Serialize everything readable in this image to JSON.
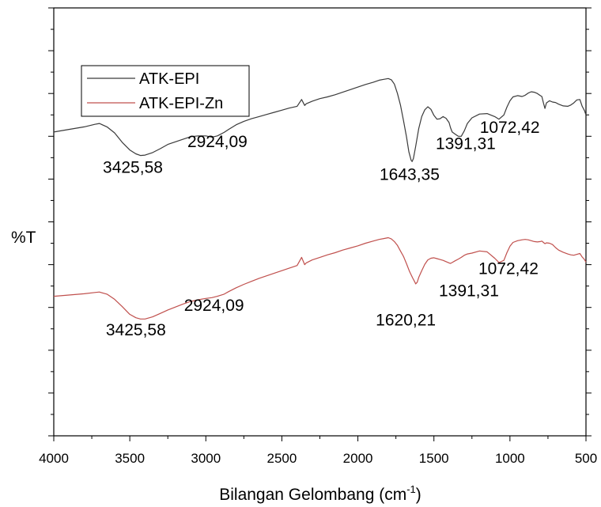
{
  "chart_data": {
    "type": "line",
    "title": "",
    "xlabel": "Bilangan Gelombang (cm",
    "xlabel_sup": "-1",
    "xlabel_close": ")",
    "ylabel": "%T",
    "x_reversed": true,
    "xlim": [
      4000,
      500
    ],
    "ylim": [
      0,
      100
    ],
    "x_ticks": [
      4000,
      3500,
      3000,
      2500,
      2000,
      1500,
      1000,
      500
    ],
    "x_tick_labels": [
      "4000",
      "3500",
      "3000",
      "2500",
      "2000",
      "1500",
      "1000",
      "500"
    ],
    "grid": false,
    "legend_position": "top-left",
    "series": [
      {
        "name": "ATK-EPI",
        "color": "#3a3a3a",
        "x": [
          4000,
          3900,
          3800,
          3730,
          3700,
          3650,
          3600,
          3550,
          3500,
          3460,
          3430,
          3400,
          3350,
          3300,
          3250,
          3200,
          3150,
          3100,
          3050,
          3000,
          2960,
          2924,
          2880,
          2850,
          2800,
          2750,
          2700,
          2650,
          2600,
          2550,
          2500,
          2450,
          2400,
          2370,
          2350,
          2340,
          2300,
          2250,
          2200,
          2150,
          2100,
          2050,
          2000,
          1950,
          1900,
          1860,
          1830,
          1800,
          1780,
          1760,
          1740,
          1720,
          1700,
          1680,
          1665,
          1650,
          1643,
          1635,
          1620,
          1600,
          1580,
          1560,
          1540,
          1520,
          1500,
          1480,
          1460,
          1440,
          1420,
          1400,
          1391,
          1380,
          1360,
          1340,
          1320,
          1300,
          1280,
          1250,
          1200,
          1150,
          1100,
          1072,
          1040,
          1020,
          1000,
          980,
          950,
          920,
          900,
          880,
          860,
          840,
          820,
          800,
          790,
          780,
          770,
          760,
          740,
          720,
          700,
          680,
          650,
          620,
          600,
          580,
          560,
          540,
          525,
          510,
          500
        ],
        "y": [
          71.0,
          71.6,
          72.2,
          72.8,
          73.0,
          72.2,
          70.8,
          68.6,
          66.8,
          65.9,
          65.5,
          65.6,
          66.2,
          67.1,
          68.1,
          68.7,
          69.3,
          69.9,
          70.1,
          70.1,
          69.8,
          70.1,
          70.9,
          71.6,
          72.7,
          73.5,
          74.1,
          74.6,
          75.1,
          75.6,
          76.1,
          76.6,
          77.0,
          78.6,
          77.2,
          77.6,
          78.2,
          78.8,
          79.2,
          79.7,
          80.3,
          80.9,
          81.5,
          82.1,
          82.6,
          83.1,
          83.3,
          83.5,
          83.2,
          82.2,
          80.0,
          77.3,
          73.6,
          69.8,
          66.4,
          64.4,
          64.1,
          64.8,
          67.6,
          71.8,
          74.6,
          76.2,
          76.9,
          76.3,
          74.9,
          74.0,
          74.1,
          74.6,
          74.2,
          73.2,
          72.0,
          71.0,
          70.5,
          70.0,
          70.0,
          71.3,
          73.0,
          74.3,
          75.2,
          75.3,
          74.6,
          74.0,
          75.0,
          76.8,
          78.3,
          79.2,
          79.5,
          79.3,
          79.6,
          80.1,
          80.4,
          80.3,
          80.0,
          79.5,
          79.3,
          77.8,
          76.5,
          77.8,
          78.3,
          78.0,
          77.9,
          77.5,
          77.1,
          77.0,
          77.3,
          77.8,
          78.5,
          78.6,
          77.0,
          76.0,
          75.0
        ]
      },
      {
        "name": "ATK-EPI-Zn",
        "color": "#c0504d",
        "x": [
          4000,
          3900,
          3800,
          3730,
          3700,
          3650,
          3600,
          3550,
          3500,
          3460,
          3430,
          3400,
          3350,
          3300,
          3250,
          3200,
          3150,
          3100,
          3050,
          3000,
          2960,
          2924,
          2880,
          2850,
          2800,
          2750,
          2700,
          2650,
          2600,
          2550,
          2500,
          2450,
          2400,
          2370,
          2350,
          2340,
          2300,
          2250,
          2200,
          2150,
          2100,
          2050,
          2000,
          1950,
          1900,
          1860,
          1830,
          1800,
          1780,
          1760,
          1740,
          1720,
          1700,
          1680,
          1660,
          1640,
          1625,
          1620,
          1610,
          1600,
          1580,
          1560,
          1540,
          1520,
          1500,
          1480,
          1460,
          1440,
          1420,
          1400,
          1391,
          1380,
          1360,
          1340,
          1320,
          1300,
          1280,
          1250,
          1200,
          1150,
          1100,
          1072,
          1040,
          1020,
          1000,
          980,
          950,
          920,
          900,
          880,
          860,
          840,
          820,
          800,
          790,
          780,
          770,
          760,
          740,
          720,
          700,
          680,
          650,
          620,
          600,
          580,
          560,
          540,
          525,
          510,
          500
        ],
        "y": [
          32.6,
          32.9,
          33.2,
          33.5,
          33.6,
          33.1,
          31.9,
          30.2,
          28.4,
          27.6,
          27.3,
          27.3,
          27.8,
          28.6,
          29.4,
          30.1,
          30.8,
          31.4,
          31.8,
          32.1,
          32.3,
          32.6,
          33.1,
          33.7,
          34.6,
          35.4,
          36.1,
          36.8,
          37.4,
          38.0,
          38.6,
          39.2,
          39.8,
          41.7,
          40.0,
          40.4,
          41.1,
          41.7,
          42.3,
          42.8,
          43.4,
          43.9,
          44.4,
          45.0,
          45.5,
          45.9,
          46.1,
          46.3,
          46.0,
          45.4,
          44.5,
          43.2,
          41.9,
          40.2,
          38.4,
          36.9,
          35.9,
          35.5,
          35.9,
          37.0,
          38.6,
          40.1,
          41.1,
          41.5,
          41.6,
          41.4,
          41.2,
          41.0,
          40.7,
          40.4,
          40.3,
          40.5,
          40.9,
          41.3,
          41.7,
          42.2,
          42.5,
          42.7,
          43.2,
          43.0,
          41.5,
          40.5,
          41.0,
          42.8,
          44.3,
          45.2,
          45.6,
          45.8,
          45.9,
          45.8,
          45.6,
          45.4,
          45.3,
          45.4,
          45.5,
          45.2,
          44.9,
          45.1,
          45.0,
          44.7,
          44.0,
          43.4,
          42.9,
          42.5,
          42.3,
          42.2,
          42.4,
          42.6,
          41.8,
          41.2,
          40.6
        ]
      }
    ],
    "annotations": [
      {
        "text": "3425,58",
        "x": 3480,
        "y": 61.5
      },
      {
        "text": "2924,09",
        "x": 2924,
        "y": 67.5
      },
      {
        "text": "1643,35",
        "x": 1660,
        "y": 59.8
      },
      {
        "text": "1391,31",
        "x": 1291,
        "y": 67.0
      },
      {
        "text": "1072,42",
        "x": 1001,
        "y": 70.8
      },
      {
        "text": "3425,58",
        "x": 3460,
        "y": 23.5
      },
      {
        "text": "2924,09",
        "x": 2946,
        "y": 29.2
      },
      {
        "text": "1620,21",
        "x": 1685,
        "y": 25.8
      },
      {
        "text": "1391,31",
        "x": 1270,
        "y": 32.6
      },
      {
        "text": "1072,42",
        "x": 1010,
        "y": 37.8
      }
    ]
  }
}
